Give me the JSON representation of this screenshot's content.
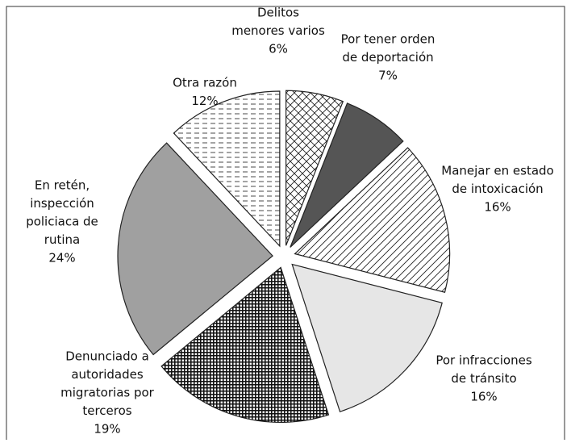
{
  "chart_data": {
    "type": "pie",
    "categories": [
      [
        "Delitos",
        "menores varios"
      ],
      [
        "Por tener orden",
        "de deportación"
      ],
      [
        "Manejar en estado",
        "de intoxicación"
      ],
      [
        "Por infracciones",
        "de tránsito"
      ],
      [
        "Denunciado a",
        "autoridades",
        "migratorias por",
        "terceros"
      ],
      [
        "En retén,",
        "inspección",
        "policiaca de",
        "rutina"
      ],
      [
        "Otra razón"
      ]
    ],
    "values": [
      6,
      7,
      16,
      16,
      19,
      24,
      12
    ],
    "value_labels": [
      "6%",
      "7%",
      "16%",
      "16%",
      "19%",
      "24%",
      "12%"
    ],
    "fills": [
      "crosshatch",
      "#555555",
      "diagonal",
      "#e6e6e6",
      "checker",
      "#a0a0a0",
      "dashes"
    ]
  }
}
